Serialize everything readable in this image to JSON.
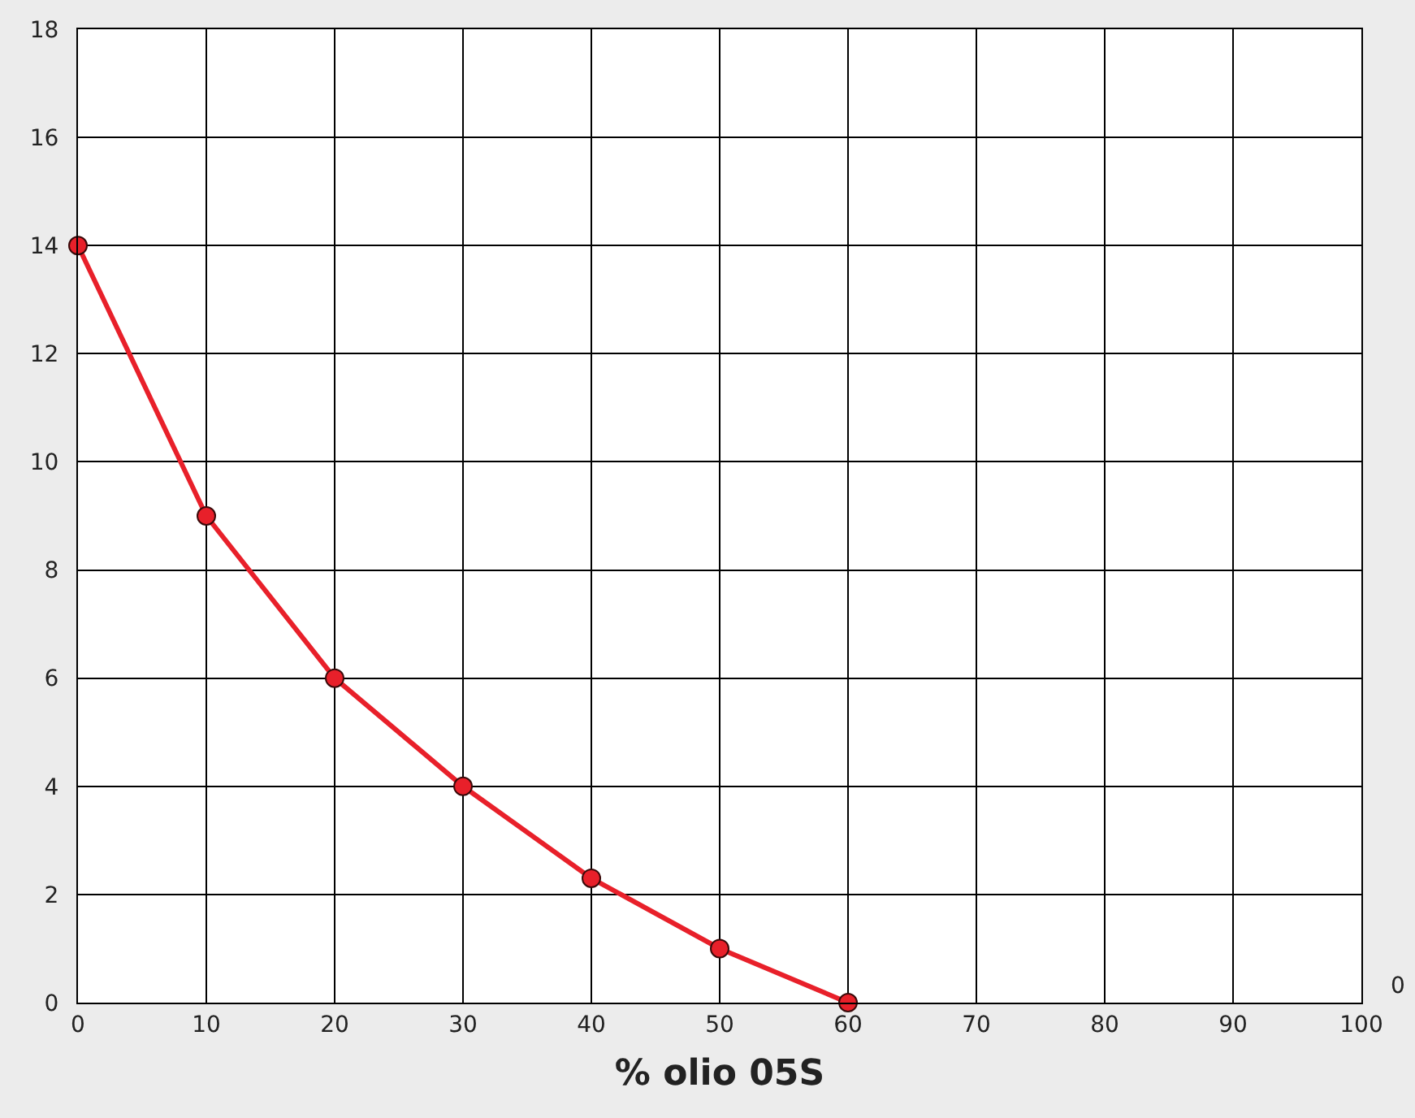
{
  "chart_data": {
    "type": "line",
    "xlabel": "% olio 05S",
    "x": [
      0,
      10,
      20,
      30,
      40,
      50,
      60
    ],
    "series": [
      {
        "color": "#e8202a",
        "values": [
          14,
          9,
          6,
          4,
          2.3,
          1,
          0
        ]
      }
    ],
    "xlim": [
      0,
      100
    ],
    "xticks": [
      0,
      10,
      20,
      30,
      40,
      50,
      60,
      70,
      80,
      90,
      100
    ],
    "ylim": [
      0,
      18
    ],
    "yticks": [
      0,
      2,
      4,
      6,
      8,
      10,
      12,
      14,
      16,
      18
    ],
    "grid": true,
    "marker": "circle",
    "line_style": "solid",
    "legend": false,
    "annotations": [
      "0"
    ]
  }
}
